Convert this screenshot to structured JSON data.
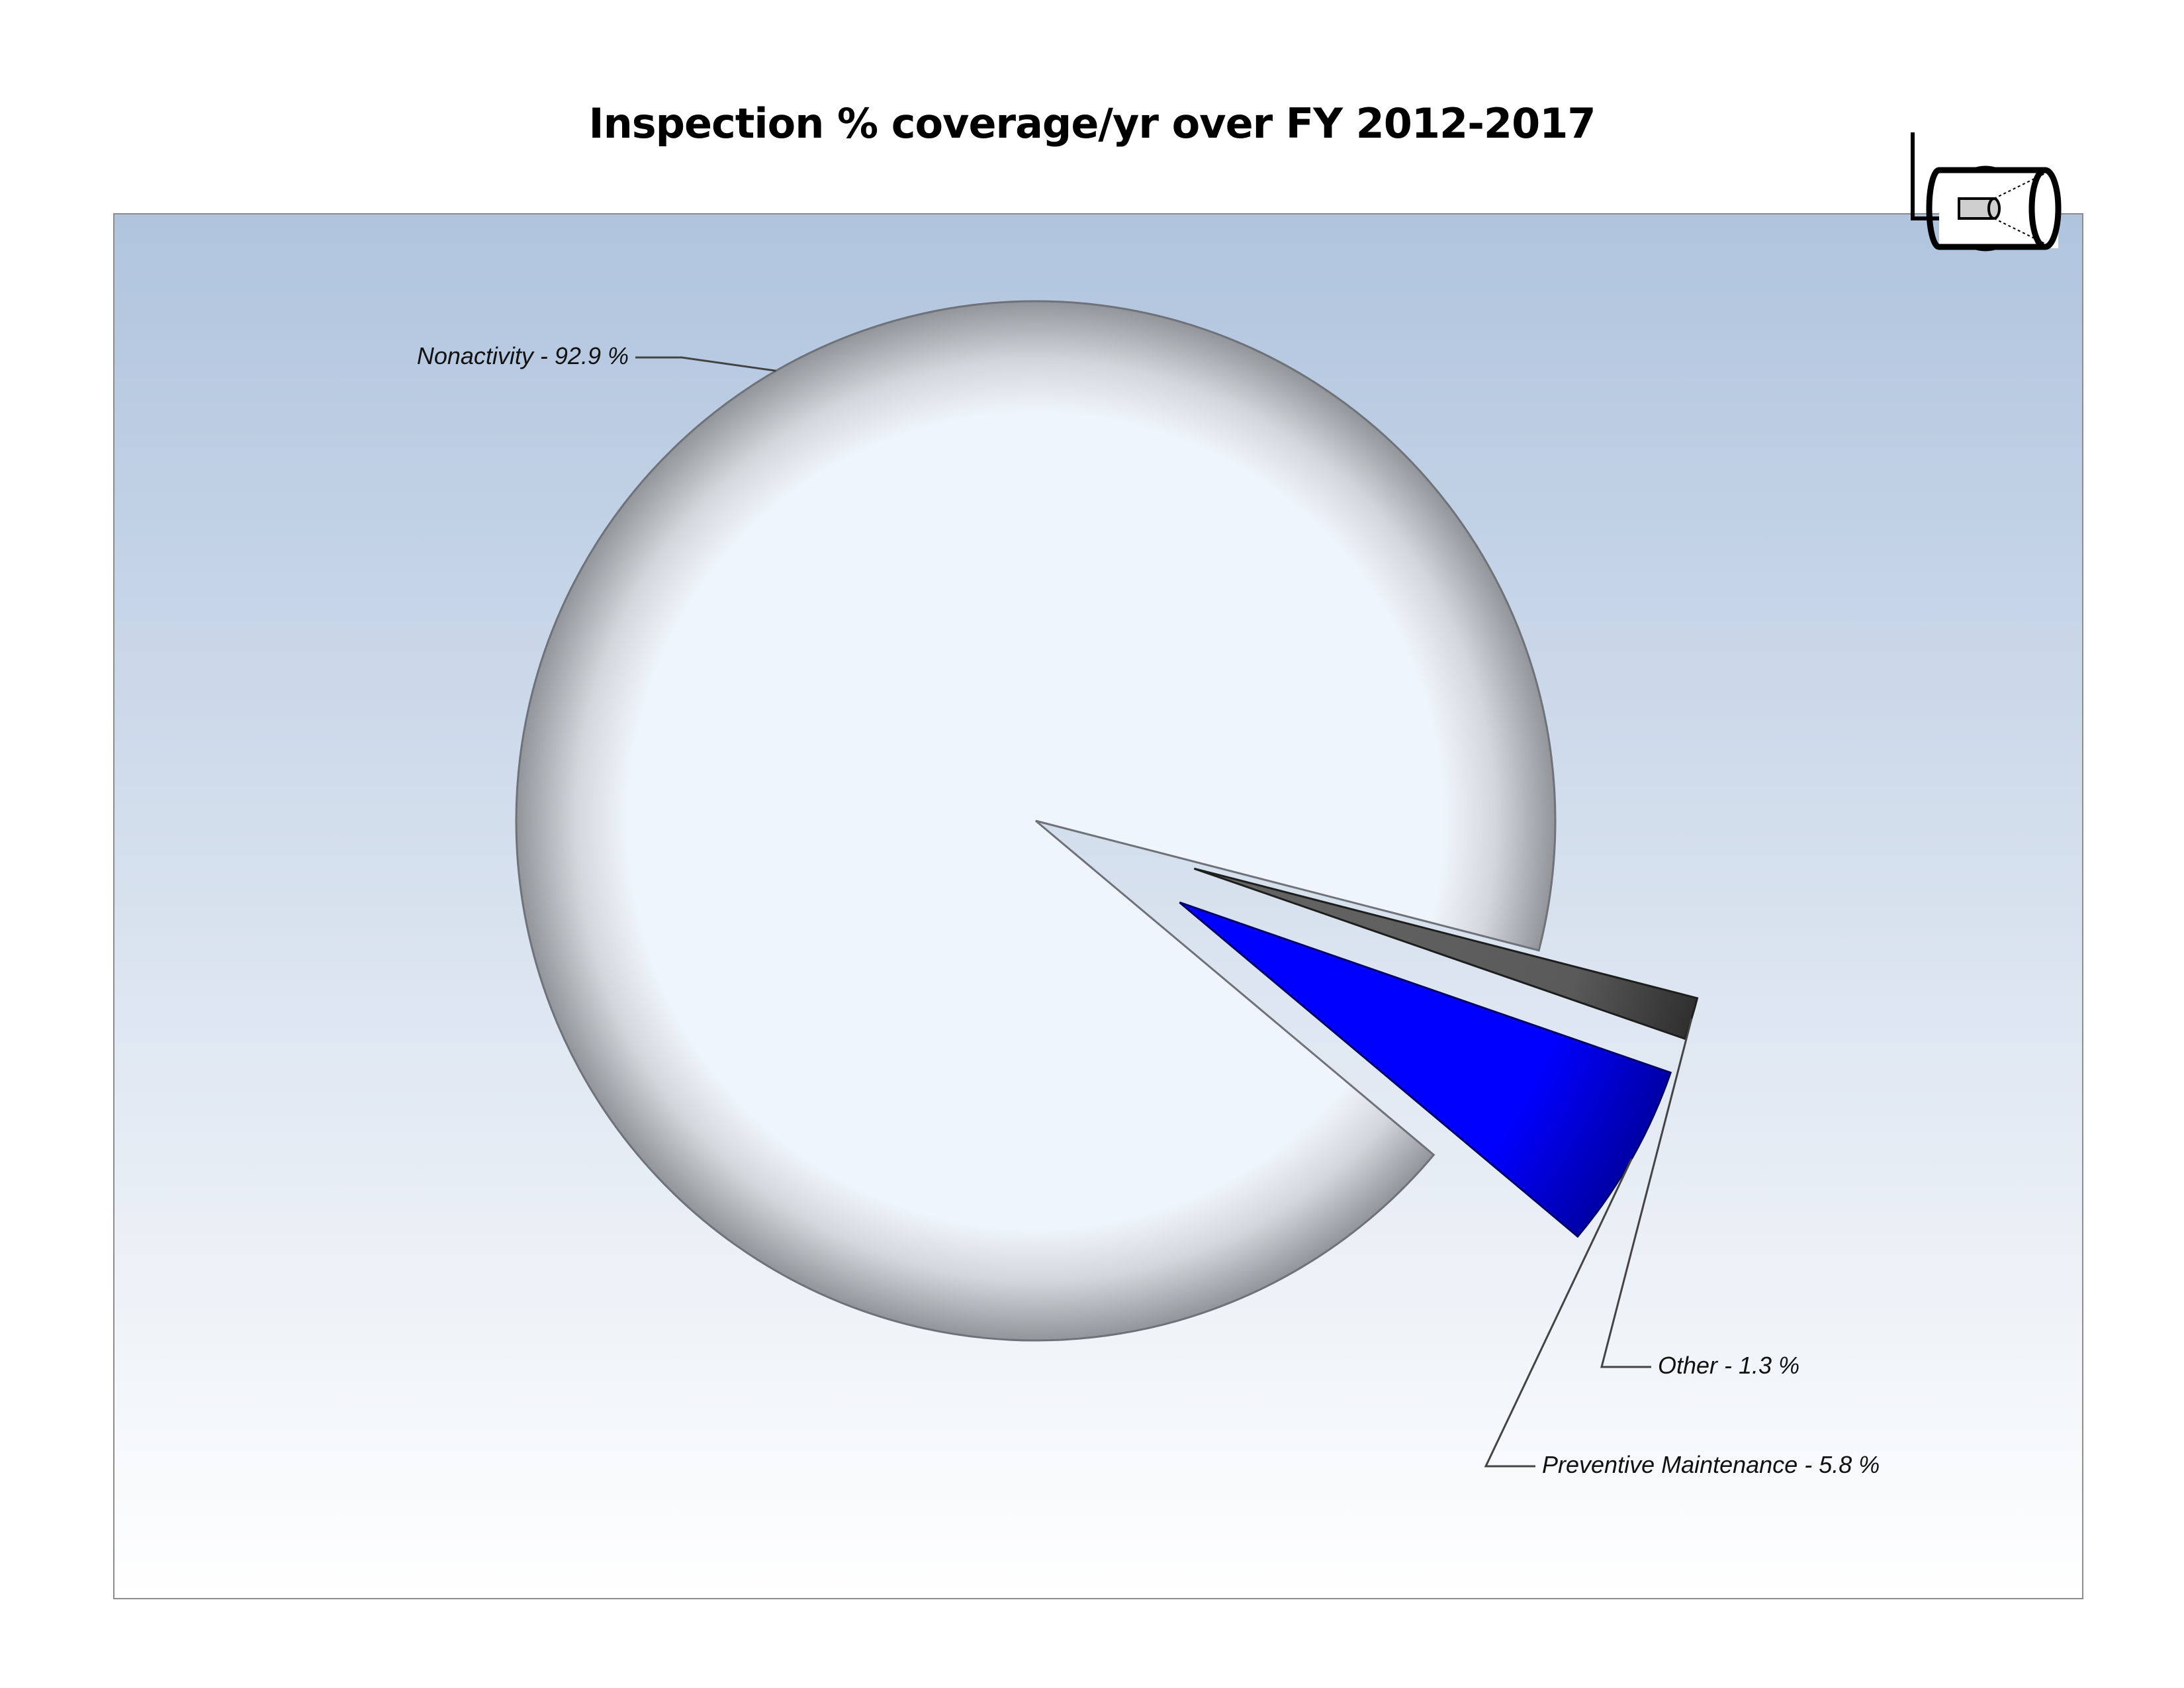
{
  "chart_data": {
    "type": "pie",
    "title": "Inspection % coverage/yr over FY 2012-2017",
    "slices": [
      {
        "label": "Nonactivity",
        "value": 92.9,
        "display": "Nonactivity - 92.9 %",
        "color": "#eef5fc",
        "edge": "#8a8e94",
        "exploded": false
      },
      {
        "label": "Preventive Maintenance",
        "value": 5.8,
        "display": "Preventive Maintenance - 5.8 %",
        "color": "#0000ff",
        "edge": "#00007a",
        "exploded": true
      },
      {
        "label": "Other",
        "value": 1.3,
        "display": "Other - 1.3 %",
        "color": "#555555",
        "edge": "#222222",
        "exploded": true
      }
    ],
    "start_angle_deg": 5,
    "direction": "clockwise-from-up-left",
    "background": {
      "top": "#b0c4de",
      "bottom": "#ffffff"
    },
    "logo": "camera-icon"
  }
}
